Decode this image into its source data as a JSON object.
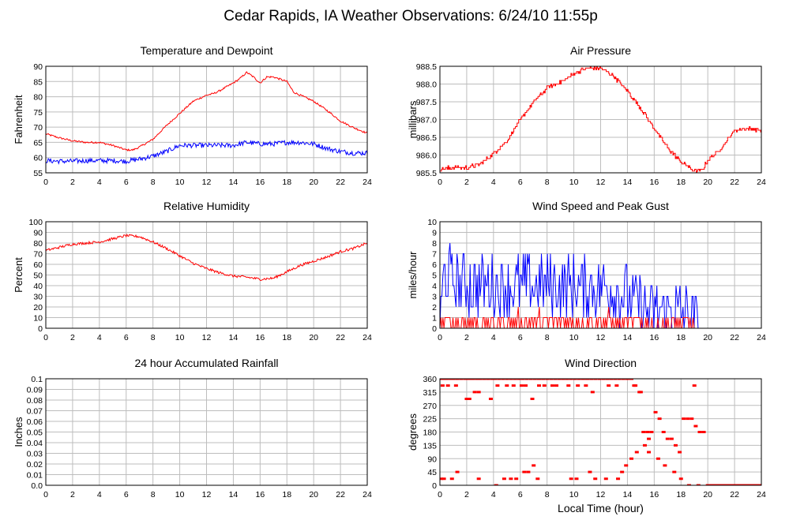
{
  "page": {
    "title": "Cedar Rapids, IA Weather Observations: 6/24/10 11:55p"
  },
  "colors": {
    "red": "#ff0000",
    "blue": "#0000ff",
    "grid": "#bdbdbd"
  },
  "chart_data": [
    {
      "id": "temp",
      "type": "line",
      "title": "Temperature and Dewpoint",
      "xlabel": "",
      "ylabel": "Fahrenheit",
      "xlim": [
        0,
        24
      ],
      "ylim": [
        55,
        90
      ],
      "xticks": [
        0,
        2,
        4,
        6,
        8,
        10,
        12,
        14,
        16,
        18,
        20,
        22,
        24
      ],
      "yticks": [
        55,
        60,
        65,
        70,
        75,
        80,
        85,
        90
      ],
      "series": [
        {
          "color": "#ff0000",
          "noise": 0.3,
          "x": [
            0,
            1,
            2,
            3,
            4,
            5,
            6,
            6.5,
            7,
            8,
            9,
            10,
            11,
            12,
            12.5,
            13,
            14,
            14.5,
            15,
            15.5,
            16,
            16.5,
            17,
            18,
            18.5,
            19,
            20,
            21,
            22,
            23,
            24
          ],
          "y": [
            67.8,
            66.5,
            65.5,
            65,
            65,
            64,
            62.5,
            62.5,
            63.5,
            66,
            70.5,
            74.5,
            78.5,
            80.5,
            81,
            82,
            84.5,
            86,
            88,
            86.5,
            84.5,
            86.5,
            86.5,
            85,
            81.5,
            80.5,
            78.5,
            75.5,
            72,
            69.8,
            68
          ]
        },
        {
          "color": "#0000ff",
          "noise": 0.8,
          "x": [
            0,
            1,
            2,
            3,
            4,
            5,
            6,
            7,
            8,
            9,
            10,
            11,
            12,
            13,
            14,
            15,
            16,
            17,
            18,
            19,
            20,
            21,
            22,
            23,
            24
          ],
          "y": [
            59,
            58.8,
            58.8,
            59,
            59,
            59,
            58.8,
            59.5,
            60.5,
            62,
            64,
            64,
            64,
            64,
            64,
            65,
            64.5,
            64.5,
            65,
            65,
            64.5,
            63,
            62,
            61.5,
            61.5
          ]
        }
      ]
    },
    {
      "id": "pres",
      "type": "line",
      "title": "Air Pressure",
      "xlabel": "",
      "ylabel": "millibars",
      "xlim": [
        0,
        24
      ],
      "ylim": [
        985.5,
        988.5
      ],
      "xticks": [
        0,
        2,
        4,
        6,
        8,
        10,
        12,
        14,
        16,
        18,
        20,
        22,
        24
      ],
      "yticks": [
        985.5,
        986.0,
        986.5,
        987.0,
        987.5,
        988.0,
        988.5
      ],
      "yticklabels": [
        "985.5",
        "986.0",
        "986.5",
        "987.0",
        "987.5",
        "988.0",
        "988.5"
      ],
      "series": [
        {
          "color": "#ff0000",
          "noise": 0.05,
          "step": true,
          "x": [
            0,
            1,
            2,
            3,
            4,
            5,
            6,
            7,
            8,
            9,
            10,
            11,
            12,
            13,
            14,
            15,
            16,
            17,
            18,
            19,
            19.5,
            20,
            21,
            22,
            23,
            24
          ],
          "y": [
            985.6,
            985.65,
            985.65,
            985.75,
            986.05,
            986.4,
            987.0,
            987.5,
            987.9,
            988.05,
            988.3,
            988.45,
            988.45,
            988.2,
            987.8,
            987.3,
            986.75,
            986.2,
            985.8,
            985.55,
            985.55,
            985.85,
            986.2,
            986.7,
            986.75,
            986.7
          ]
        }
      ]
    },
    {
      "id": "rh",
      "type": "line",
      "title": "Relative Humidity",
      "xlabel": "",
      "ylabel": "Percent",
      "xlim": [
        0,
        24
      ],
      "ylim": [
        0,
        100
      ],
      "xticks": [
        0,
        2,
        4,
        6,
        8,
        10,
        12,
        14,
        16,
        18,
        20,
        22,
        24
      ],
      "yticks": [
        0,
        10,
        20,
        30,
        40,
        50,
        60,
        70,
        80,
        90,
        100
      ],
      "series": [
        {
          "color": "#ff0000",
          "noise": 1.2,
          "x": [
            0,
            1,
            2,
            3,
            4,
            5,
            6,
            7,
            8,
            9,
            10,
            11,
            12,
            13,
            14,
            15,
            16,
            17,
            18,
            19,
            20,
            21,
            22,
            23,
            24
          ],
          "y": [
            73,
            76,
            79,
            80,
            81,
            84,
            87,
            86,
            81,
            75,
            68,
            61,
            56,
            52,
            49,
            48,
            46,
            47,
            53,
            59,
            63,
            67,
            72,
            75,
            80
          ]
        }
      ]
    },
    {
      "id": "wind",
      "type": "line",
      "title": "Wind Speed and Peak Gust",
      "xlabel": "",
      "ylabel": "miles/hour",
      "xlim": [
        0,
        24
      ],
      "ylim": [
        0,
        10
      ],
      "xticks": [
        0,
        2,
        4,
        6,
        8,
        10,
        12,
        14,
        16,
        18,
        20,
        22,
        24
      ],
      "yticks": [
        0,
        1,
        2,
        3,
        4,
        5,
        6,
        7,
        8,
        9,
        10
      ],
      "series": [
        {
          "color": "#0000ff",
          "jagged": true,
          "amp": 3,
          "nmax": 8,
          "x": [
            0,
            0.3,
            2,
            4,
            6,
            8,
            10,
            12,
            14,
            15,
            16,
            17,
            18,
            18.5,
            19,
            19.5,
            24
          ],
          "y": [
            0,
            5,
            4,
            4,
            4,
            4,
            4,
            4,
            3,
            2,
            1.5,
            1.5,
            1.5,
            1,
            0.5,
            0,
            0
          ]
        },
        {
          "color": "#ff0000",
          "jagged": true,
          "amp": 1,
          "nmax": 2,
          "x": [
            0,
            0.3,
            4,
            8,
            12,
            16,
            18,
            19.5,
            24
          ],
          "y": [
            0,
            0.5,
            0.5,
            0.6,
            0.6,
            0.4,
            0.3,
            0,
            0
          ]
        }
      ]
    },
    {
      "id": "rain",
      "type": "line",
      "title": "24 hour Accumulated Rainfall",
      "xlabel": "",
      "ylabel": "Inches",
      "xlim": [
        0,
        24
      ],
      "ylim": [
        0,
        0.1
      ],
      "xticks": [
        0,
        2,
        4,
        6,
        8,
        10,
        12,
        14,
        16,
        18,
        20,
        22,
        24
      ],
      "yticks": [
        0,
        0.01,
        0.02,
        0.03,
        0.04,
        0.05,
        0.06,
        0.07,
        0.08,
        0.09,
        0.1
      ],
      "yticklabels": [
        "0.0",
        "0.01",
        "0.02",
        "0.03",
        "0.04",
        "0.05",
        "0.06",
        "0.07",
        "0.08",
        "0.09",
        "0.1"
      ],
      "series": [
        {
          "color": "#ff0000",
          "x": [
            0,
            24
          ],
          "y": [
            0,
            0
          ]
        }
      ]
    },
    {
      "id": "wdir",
      "type": "scatter",
      "title": "Wind Direction",
      "xlabel": "Local Time (hour)",
      "ylabel": "degrees",
      "xlim": [
        0,
        24
      ],
      "ylim": [
        0,
        360
      ],
      "xticks": [
        0,
        2,
        4,
        6,
        8,
        10,
        12,
        14,
        16,
        18,
        20,
        22,
        24
      ],
      "yticks": [
        0,
        45,
        90,
        135,
        180,
        225,
        270,
        315,
        360
      ],
      "series": [
        {
          "color": "#ff0000",
          "x": [
            0.1,
            0.3,
            0.5,
            0.8,
            1.0,
            1.3,
            1.6,
            1.9,
            2.1,
            2.3,
            2.5,
            2.8,
            3.0,
            3.3,
            3.6,
            3.9,
            4.1,
            4.4,
            4.7,
            5.0,
            5.3,
            5.6,
            5.9,
            6.2,
            6.5,
            6.8,
            7.1,
            7.4,
            7.7,
            8.0,
            8.3,
            8.6,
            8.9,
            9.2,
            9.5,
            9.8,
            10.1,
            10.4,
            10.7,
            11.0,
            11.3,
            11.6,
            11.9,
            12.2,
            12.5,
            12.8,
            13.1,
            13.4,
            13.7,
            14.0,
            14.3,
            14.6,
            14.9,
            15.2,
            15.5,
            15.8,
            16.1,
            16.4,
            16.7,
            17.0,
            17.3,
            17.6,
            17.9,
            18.2,
            18.5,
            18.8,
            19.1,
            19.4,
            19.7,
            20,
            20.5,
            21,
            21.5,
            22,
            22.5,
            23,
            23.5,
            24,
            0.2,
            0.6,
            1.2,
            2.0,
            2.2,
            2.6,
            2.9,
            3.8,
            4.3,
            5.0,
            5.5,
            6.1,
            6.4,
            6.9,
            7.4,
            7.8,
            8.4,
            8.7,
            9.6,
            10.3,
            10.9,
            11.4,
            12.6,
            13.2,
            14.5,
            15.0,
            15.6,
            16.3,
            16.8,
            17.5,
            18.0,
            18.6,
            0.1,
            0.3,
            0.9,
            1.3,
            2.9,
            4.2,
            4.8,
            5.3,
            5.7,
            6.3,
            6.6,
            7.0,
            7.3,
            9.8,
            10.2,
            11.2,
            11.6,
            12.4,
            13.3,
            13.6,
            13.9,
            14.3,
            14.7,
            15.3,
            15.6,
            19.0,
            19.3
          ],
          "y": [
            360,
            360,
            360,
            360,
            360,
            360,
            360,
            360,
            360,
            360,
            360,
            360,
            360,
            360,
            360,
            360,
            360,
            360,
            360,
            360,
            360,
            360,
            360,
            360,
            360,
            360,
            360,
            360,
            360,
            360,
            360,
            360,
            360,
            360,
            360,
            360,
            360,
            360,
            360,
            360,
            360,
            360,
            360,
            360,
            360,
            360,
            360,
            360,
            360,
            360,
            360,
            337,
            315,
            180,
            180,
            180,
            247,
            225,
            180,
            157,
            157,
            135,
            112,
            225,
            225,
            225,
            200,
            180,
            180,
            0,
            0,
            0,
            0,
            0,
            0,
            0,
            0,
            0,
            337,
            337,
            337,
            292,
            292,
            315,
            315,
            292,
            337,
            337,
            337,
            337,
            337,
            292,
            337,
            337,
            337,
            337,
            337,
            337,
            337,
            315,
            337,
            337,
            337,
            315,
            112,
            90,
            67,
            45,
            22,
            0,
            22,
            22,
            22,
            45,
            22,
            0,
            22,
            22,
            22,
            45,
            45,
            67,
            22,
            22,
            22,
            45,
            22,
            22,
            22,
            45,
            67,
            90,
            112,
            135,
            157,
            337,
            0
          ]
        }
      ]
    }
  ]
}
